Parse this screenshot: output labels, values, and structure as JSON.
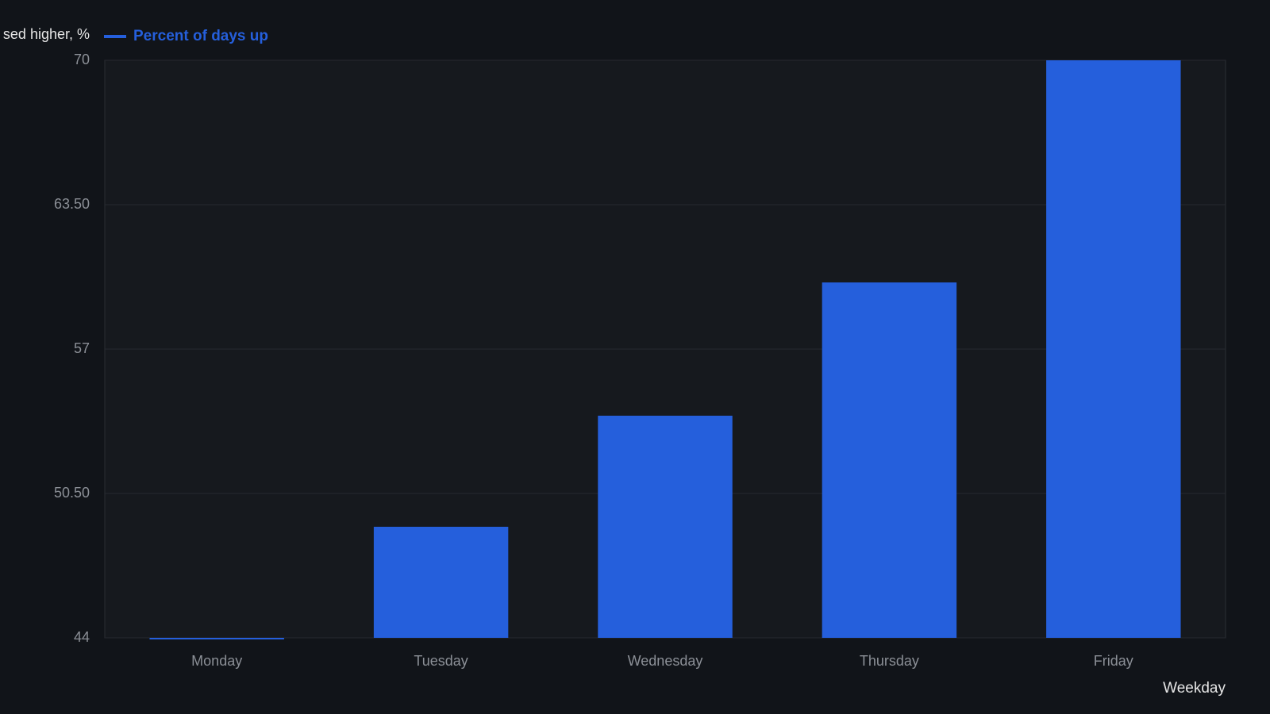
{
  "chart_data": {
    "type": "bar",
    "y_axis_title": "sed higher, %",
    "x_axis_title": "Weekday",
    "categories": [
      "Monday",
      "Tuesday",
      "Wednesday",
      "Thursday",
      "Friday"
    ],
    "series": [
      {
        "name": "Percent of days up",
        "color": "#255fdc",
        "values": [
          44,
          49,
          54,
          60,
          70
        ]
      }
    ],
    "ylim": [
      44,
      70
    ],
    "yticks": [
      44,
      {
        "value": 50.5,
        "label": "50.50"
      },
      57,
      {
        "value": 63.5,
        "label": "63.50"
      },
      70
    ],
    "grid": true
  }
}
